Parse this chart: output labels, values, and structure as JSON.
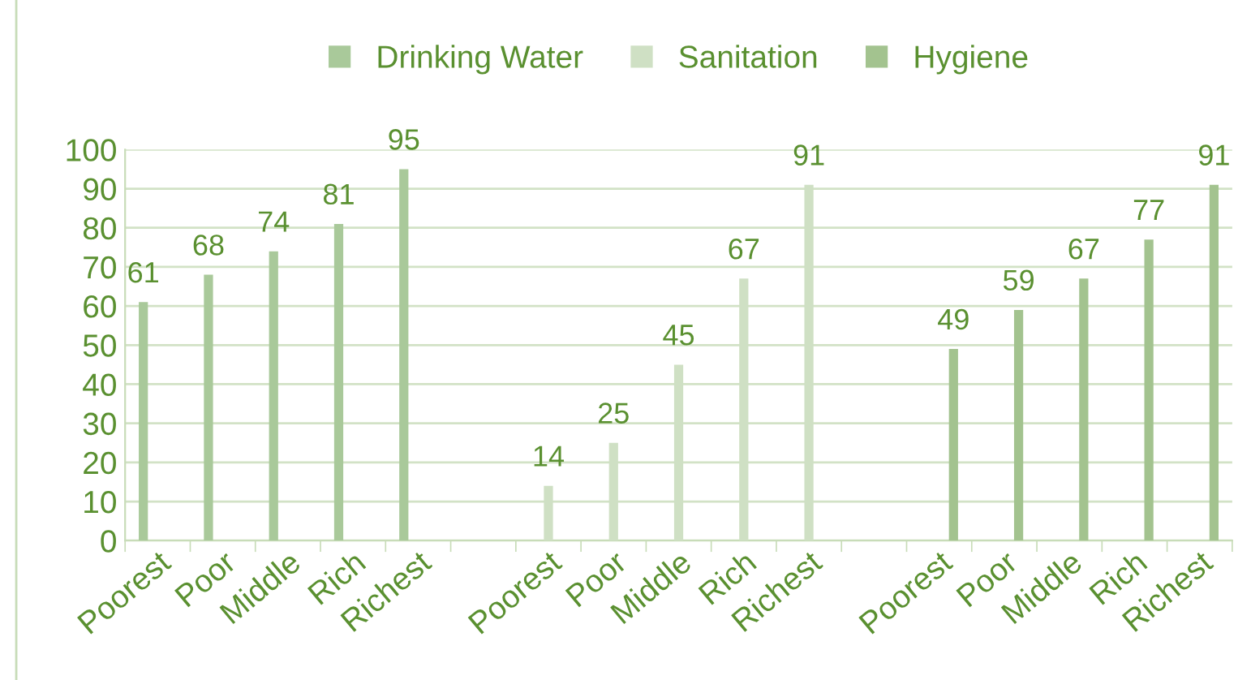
{
  "chart_data": {
    "type": "bar",
    "categories": [
      "Poorest",
      "Poor",
      "Middle",
      "Rich",
      "Richest",
      null,
      "Poorest",
      "Poor",
      "Middle",
      "Rich",
      "Richest",
      null,
      "Poorest",
      "Poor",
      "Middle",
      "Rich",
      "Richest"
    ],
    "series": [
      {
        "name": "Drinking Water",
        "color": "#a9c99a",
        "values": [
          61,
          68,
          74,
          81,
          95,
          null,
          null,
          null,
          null,
          null,
          null,
          null,
          null,
          null,
          null,
          null,
          null
        ]
      },
      {
        "name": "Sanitation",
        "color": "#cfe0c4",
        "values": [
          null,
          null,
          null,
          null,
          null,
          null,
          14,
          25,
          45,
          67,
          91,
          null,
          null,
          null,
          null,
          null,
          null
        ]
      },
      {
        "name": "Hygiene",
        "color": "#a3c38f",
        "values": [
          null,
          null,
          null,
          null,
          null,
          null,
          null,
          null,
          null,
          null,
          null,
          null,
          49,
          59,
          67,
          77,
          91
        ]
      }
    ],
    "ylim": [
      0,
      100
    ],
    "yticks": [
      0,
      10,
      20,
      30,
      40,
      50,
      60,
      70,
      80,
      90,
      100
    ],
    "grid": "y",
    "legend": "top",
    "data_labels": true
  }
}
